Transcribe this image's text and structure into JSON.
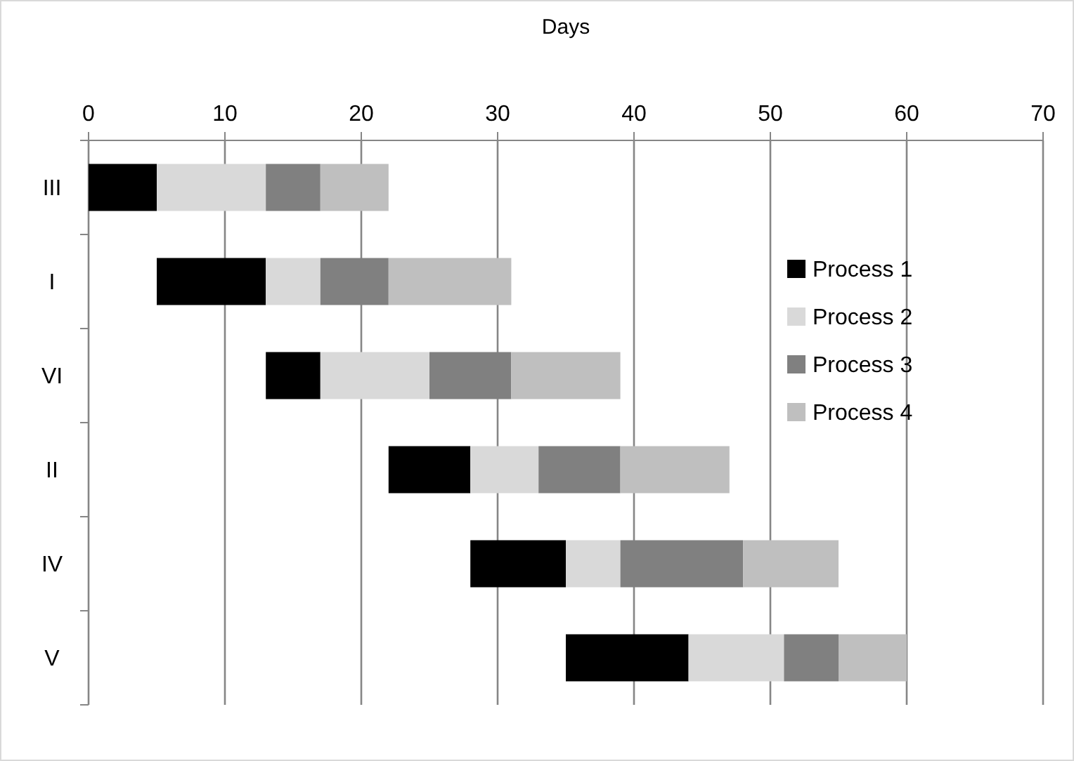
{
  "chart_data": {
    "type": "bar",
    "orientation": "horizontal",
    "xlabel": "Days",
    "categories": [
      "III",
      "I",
      "VI",
      "II",
      "IV",
      "V"
    ],
    "series": [
      {
        "name": "Process 1",
        "color": "#000000",
        "base": [
          0,
          5,
          13,
          22,
          28,
          35
        ],
        "values": [
          5,
          8,
          4,
          6,
          7,
          9
        ]
      },
      {
        "name": "Process 2",
        "color": "#d9d9d9",
        "base": [
          5,
          13,
          17,
          28,
          35,
          44
        ],
        "values": [
          8,
          4,
          8,
          5,
          4,
          7
        ]
      },
      {
        "name": "Process 3",
        "color": "#808080",
        "base": [
          13,
          17,
          25,
          33,
          39,
          51
        ],
        "values": [
          4,
          5,
          6,
          6,
          9,
          4
        ]
      },
      {
        "name": "Process 4",
        "color": "#bfbfbf",
        "base": [
          17,
          22,
          31,
          39,
          48,
          55
        ],
        "values": [
          5,
          9,
          8,
          8,
          7,
          5
        ]
      }
    ],
    "xlim": [
      0,
      70
    ],
    "xticks": [
      0,
      10,
      20,
      30,
      40,
      50,
      60,
      70
    ],
    "grid": "x",
    "legend": "top right"
  }
}
